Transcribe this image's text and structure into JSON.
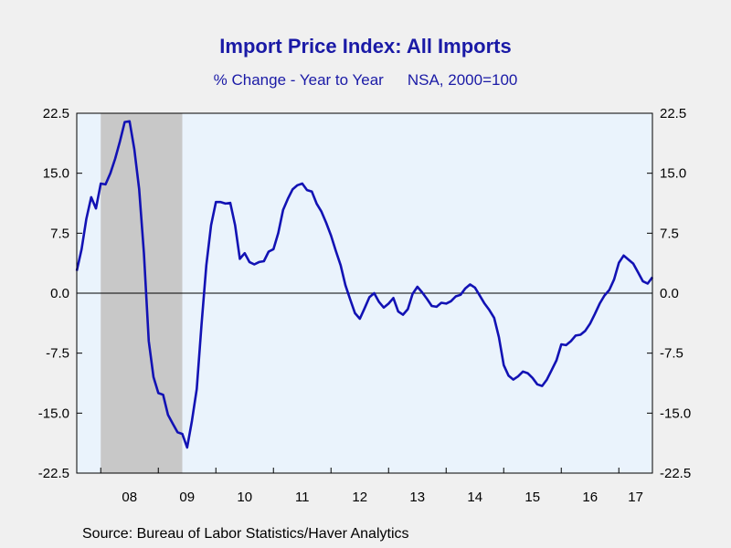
{
  "chart_data": {
    "type": "line",
    "title": "Import Price Index: All Imports",
    "subtitle": "% Change - Year to Year",
    "subtitle_note": "NSA, 2000=100",
    "source": "Source:  Bureau of Labor Statistics/Haver Analytics",
    "ylim": [
      -22.5,
      22.5
    ],
    "yticks": [
      22.5,
      15.0,
      7.5,
      0.0,
      -7.5,
      -15.0,
      -22.5
    ],
    "ytick_labels": [
      "22.5",
      "15.0",
      "7.5",
      "0.0",
      "-7.5",
      "-15.0",
      "-22.5"
    ],
    "xlim": [
      "2007-08",
      "2017-08"
    ],
    "xtick_labels": [
      "08",
      "09",
      "10",
      "11",
      "12",
      "13",
      "14",
      "15",
      "16",
      "17"
    ],
    "grid": false,
    "zero_line": true,
    "recession_shading": [
      {
        "start": "2008-01",
        "end": "2009-06"
      }
    ],
    "colors": {
      "line": "#1212b4",
      "plot_bg": "#eaf3fc",
      "recession": "#c8c8c8",
      "text": "#1a1aa6"
    },
    "series": [
      {
        "x": [
          "2007-08",
          "2007-09",
          "2007-10",
          "2007-11",
          "2007-12",
          "2008-01",
          "2008-02",
          "2008-03",
          "2008-04",
          "2008-05",
          "2008-06",
          "2008-07",
          "2008-08",
          "2008-09",
          "2008-10",
          "2008-11",
          "2008-12",
          "2009-01",
          "2009-02",
          "2009-03",
          "2009-04",
          "2009-05",
          "2009-06",
          "2009-07",
          "2009-08",
          "2009-09",
          "2009-10",
          "2009-11",
          "2009-12",
          "2010-01",
          "2010-02",
          "2010-03",
          "2010-04",
          "2010-05",
          "2010-06",
          "2010-07",
          "2010-08",
          "2010-09",
          "2010-10",
          "2010-11",
          "2010-12",
          "2011-01",
          "2011-02",
          "2011-03",
          "2011-04",
          "2011-05",
          "2011-06",
          "2011-07",
          "2011-08",
          "2011-09",
          "2011-10",
          "2011-11",
          "2011-12",
          "2012-01",
          "2012-02",
          "2012-03",
          "2012-04",
          "2012-05",
          "2012-06",
          "2012-07",
          "2012-08",
          "2012-09",
          "2012-10",
          "2012-11",
          "2012-12",
          "2013-01",
          "2013-02",
          "2013-03",
          "2013-04",
          "2013-05",
          "2013-06",
          "2013-07",
          "2013-08",
          "2013-09",
          "2013-10",
          "2013-11",
          "2013-12",
          "2014-01",
          "2014-02",
          "2014-03",
          "2014-04",
          "2014-05",
          "2014-06",
          "2014-07",
          "2014-08",
          "2014-09",
          "2014-10",
          "2014-11",
          "2014-12",
          "2015-01",
          "2015-02",
          "2015-03",
          "2015-04",
          "2015-05",
          "2015-06",
          "2015-07",
          "2015-08",
          "2015-09",
          "2015-10",
          "2015-11",
          "2015-12",
          "2016-01",
          "2016-02",
          "2016-03",
          "2016-04",
          "2016-05",
          "2016-06",
          "2016-07",
          "2016-08",
          "2016-09",
          "2016-10",
          "2016-11",
          "2016-12",
          "2017-01",
          "2017-02",
          "2017-03",
          "2017-04",
          "2017-05",
          "2017-06",
          "2017-07",
          "2017-08"
        ],
        "values": [
          2.8,
          5.5,
          9.3,
          12.0,
          10.6,
          13.7,
          13.6,
          15.0,
          16.8,
          19.0,
          21.4,
          21.5,
          18.0,
          13.0,
          5.0,
          -6.0,
          -10.5,
          -12.5,
          -12.7,
          -15.2,
          -16.3,
          -17.4,
          -17.6,
          -19.3,
          -16.0,
          -12.0,
          -4.0,
          3.5,
          8.5,
          11.4,
          11.4,
          11.2,
          11.3,
          8.5,
          4.3,
          5.0,
          3.9,
          3.6,
          3.9,
          4.0,
          5.2,
          5.5,
          7.5,
          10.4,
          11.8,
          13.0,
          13.5,
          13.7,
          12.9,
          12.7,
          11.2,
          10.2,
          8.8,
          7.2,
          5.3,
          3.5,
          1.0,
          -0.8,
          -2.5,
          -3.2,
          -1.9,
          -0.5,
          0.0,
          -1.1,
          -1.8,
          -1.3,
          -0.6,
          -2.3,
          -2.7,
          -2.0,
          -0.1,
          0.8,
          0.1,
          -0.7,
          -1.6,
          -1.7,
          -1.2,
          -1.3,
          -1.0,
          -0.4,
          -0.2,
          0.6,
          1.1,
          0.7,
          -0.3,
          -1.3,
          -2.1,
          -3.1,
          -5.5,
          -9.0,
          -10.3,
          -10.8,
          -10.4,
          -9.8,
          -10.0,
          -10.6,
          -11.4,
          -11.6,
          -10.8,
          -9.6,
          -8.4,
          -6.4,
          -6.5,
          -6.0,
          -5.3,
          -5.2,
          -4.7,
          -3.8,
          -2.6,
          -1.3,
          -0.3,
          0.4,
          1.7,
          3.8,
          4.7,
          4.2,
          3.7,
          2.6,
          1.5,
          1.2,
          2.0
        ]
      }
    ]
  }
}
